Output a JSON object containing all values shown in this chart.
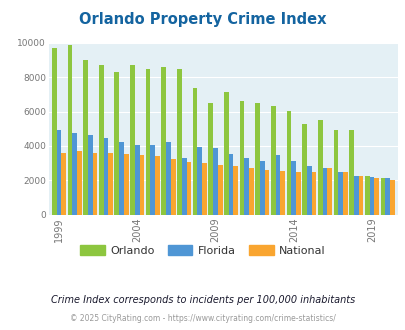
{
  "title": "Orlando Property Crime Index",
  "title_color": "#1464a0",
  "years": [
    1999,
    2000,
    2001,
    2002,
    2003,
    2004,
    2005,
    2006,
    2007,
    2008,
    2009,
    2010,
    2011,
    2012,
    2013,
    2014,
    2015,
    2016,
    2017,
    2018,
    2019,
    2020
  ],
  "orlando": [
    9700,
    9900,
    9000,
    8700,
    8300,
    8700,
    8500,
    8600,
    8500,
    7400,
    6500,
    7150,
    6600,
    6500,
    6350,
    6050,
    5250,
    5500,
    4900,
    4900,
    2250,
    2150
  ],
  "florida": [
    4900,
    4750,
    4650,
    4450,
    4200,
    4050,
    4050,
    4200,
    3300,
    3950,
    3900,
    3550,
    3300,
    3100,
    3450,
    3100,
    2850,
    2700,
    2450,
    2250,
    2200,
    2100
  ],
  "national": [
    3600,
    3700,
    3600,
    3600,
    3550,
    3450,
    3400,
    3250,
    3050,
    3000,
    2900,
    2850,
    2700,
    2600,
    2550,
    2500,
    2450,
    2700,
    2500,
    2250,
    2150,
    2000
  ],
  "orlando_color": "#8dc63f",
  "florida_color": "#4f96d5",
  "national_color": "#f9a530",
  "plot_bg": "#e4f0f5",
  "ylabel_ticks": [
    0,
    2000,
    4000,
    6000,
    8000,
    10000
  ],
  "x_tick_years": [
    1999,
    2004,
    2009,
    2014,
    2019
  ],
  "footnote": "Crime Index corresponds to incidents per 100,000 inhabitants",
  "copyright": "© 2025 CityRating.com - https://www.cityrating.com/crime-statistics/",
  "legend_labels": [
    "Orlando",
    "Florida",
    "National"
  ],
  "figsize": [
    4.06,
    3.3
  ],
  "dpi": 100
}
